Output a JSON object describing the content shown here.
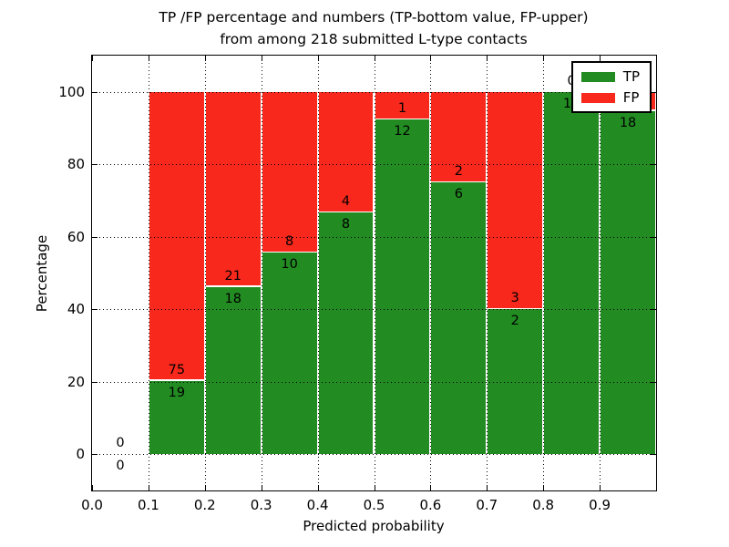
{
  "figure": {
    "title_line1": "TP /FP percentage and numbers (TP-bottom value, FP-upper)",
    "title_line2": "from among 218 submitted L-type contacts",
    "xlabel": "Predicted probability",
    "ylabel": "Percentage"
  },
  "chart_data": {
    "type": "bar",
    "stacked": true,
    "orientation": "vertical",
    "title": "TP /FP percentage and numbers (TP-bottom value, FP-upper) from among 218 submitted L-type contacts",
    "xlabel": "Predicted probability",
    "ylabel": "Percentage",
    "total_contacts": 218,
    "xlim": [
      0.0,
      1.0
    ],
    "ylim": [
      -10,
      110
    ],
    "xticks": [
      "0.0",
      "0.1",
      "0.2",
      "0.3",
      "0.4",
      "0.5",
      "0.6",
      "0.7",
      "0.8",
      "0.9"
    ],
    "xtick_values": [
      0.0,
      0.1,
      0.2,
      0.3,
      0.4,
      0.5,
      0.6,
      0.7,
      0.8,
      0.9
    ],
    "yticks": [
      0,
      20,
      40,
      60,
      80,
      100
    ],
    "grid": true,
    "grid_style": "dotted",
    "legend_position": "upper right",
    "bin_width": 0.1,
    "bin_starts": [
      0.0,
      0.1,
      0.2,
      0.3,
      0.4,
      0.5,
      0.6,
      0.7,
      0.8,
      0.9
    ],
    "categories": [
      "0.0-0.1",
      "0.1-0.2",
      "0.2-0.3",
      "0.3-0.4",
      "0.4-0.5",
      "0.5-0.6",
      "0.6-0.7",
      "0.7-0.8",
      "0.8-0.9",
      "0.9-1.0"
    ],
    "series": [
      {
        "name": "TP",
        "color": "#228B22",
        "counts": [
          0,
          19,
          18,
          10,
          8,
          12,
          6,
          2,
          10,
          18
        ],
        "percent": [
          0,
          20.21,
          46.15,
          55.56,
          66.67,
          92.31,
          75.0,
          40.0,
          100.0,
          94.74
        ]
      },
      {
        "name": "FP",
        "color": "#F8281C",
        "counts": [
          0,
          75,
          21,
          8,
          4,
          1,
          2,
          3,
          0,
          1
        ],
        "percent": [
          0,
          79.79,
          53.85,
          44.44,
          33.33,
          7.69,
          25.0,
          60.0,
          0.0,
          5.26
        ]
      }
    ]
  }
}
